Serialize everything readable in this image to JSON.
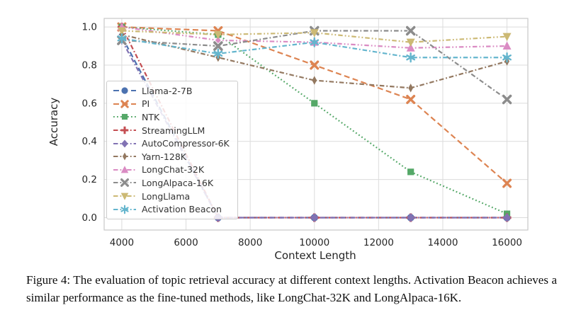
{
  "figure": {
    "caption": "Figure 4: The evaluation of topic retrieval accuracy at different context lengths. Activation Beacon achieves a similar performance as the fine-tuned methods, like LongChat-32K and LongAlpaca-16K."
  },
  "chart_data": {
    "type": "line",
    "title": "",
    "xlabel": "Context Length",
    "ylabel": "Accuracy",
    "x": [
      4000,
      7000,
      10000,
      13000,
      16000
    ],
    "xticks": [
      4000,
      6000,
      8000,
      10000,
      12000,
      14000,
      16000
    ],
    "yticks": [
      0.0,
      0.2,
      0.4,
      0.6,
      0.8,
      1.0
    ],
    "xlim": [
      3450,
      16650
    ],
    "ylim": [
      -0.065,
      1.045
    ],
    "grid": true,
    "legend_position": "center-left",
    "grid_color": "#dcdcdc",
    "border_color": "#c9c9c9",
    "tick_color": "#262626",
    "series": [
      {
        "name": "Llama-2-7B",
        "color": "#4C72B0",
        "marker": "circle",
        "dash": "dashed",
        "values": [
          0.95,
          0.0,
          0.0,
          0.0,
          0.0
        ]
      },
      {
        "name": "PI",
        "color": "#DD8452",
        "marker": "x",
        "dash": "dashed",
        "values": [
          1.0,
          0.98,
          0.8,
          0.62,
          0.18
        ]
      },
      {
        "name": "NTK",
        "color": "#55A868",
        "marker": "square",
        "dash": "dotted",
        "values": [
          1.0,
          0.96,
          0.6,
          0.24,
          0.02
        ]
      },
      {
        "name": "StreamingLLM",
        "color": "#C44E52",
        "marker": "plus",
        "dash": "dashdot",
        "values": [
          1.0,
          0.0,
          0.0,
          0.0,
          0.0
        ]
      },
      {
        "name": "AutoCompressor-6K",
        "color": "#8172B3",
        "marker": "diamond",
        "dash": "dashdot",
        "values": [
          0.93,
          0.0,
          0.0,
          0.0,
          0.0
        ]
      },
      {
        "name": "Yarn-128K",
        "color": "#937860",
        "marker": "thin-diamond",
        "dash": "dashdot",
        "values": [
          0.96,
          0.84,
          0.72,
          0.68,
          0.82
        ]
      },
      {
        "name": "LongChat-32K",
        "color": "#DA8BC3",
        "marker": "triangle-up",
        "dash": "dashdotdot",
        "values": [
          1.0,
          0.93,
          0.92,
          0.89,
          0.9
        ]
      },
      {
        "name": "LongAlpaca-16K",
        "color": "#8C8C8C",
        "marker": "x-bold",
        "dash": "dashdot",
        "values": [
          0.93,
          0.9,
          0.98,
          0.98,
          0.62
        ]
      },
      {
        "name": "LongLlama",
        "color": "#CCB974",
        "marker": "triangle-down",
        "dash": "dashdotdot",
        "values": [
          0.98,
          0.96,
          0.97,
          0.92,
          0.95
        ]
      },
      {
        "name": "Activation Beacon",
        "color": "#64B5CD",
        "marker": "star",
        "dash": "dashdot",
        "values": [
          0.94,
          0.86,
          0.92,
          0.84,
          0.84
        ]
      }
    ]
  }
}
